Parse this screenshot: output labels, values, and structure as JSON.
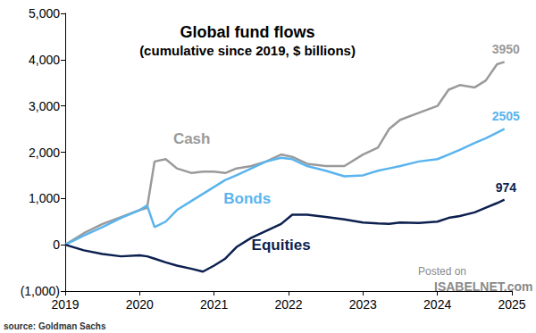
{
  "chart_data": {
    "type": "line",
    "title": "Global fund flows",
    "subtitle": "(cumulative since 2019, $ billions)",
    "x": [
      2019,
      2019.25,
      2019.5,
      2019.75,
      2020,
      2020.1,
      2020.2,
      2020.35,
      2020.5,
      2020.7,
      2020.85,
      2021,
      2021.15,
      2021.3,
      2021.5,
      2021.7,
      2021.9,
      2022.05,
      2022.25,
      2022.5,
      2022.75,
      2023,
      2023.2,
      2023.35,
      2023.5,
      2023.75,
      2024,
      2024.15,
      2024.3,
      2024.5,
      2024.65,
      2024.8,
      2024.9
    ],
    "series": [
      {
        "name": "Cash",
        "color": "#9a9a9a",
        "values": [
          0,
          250,
          450,
          600,
          750,
          800,
          1800,
          1850,
          1650,
          1550,
          1580,
          1580,
          1550,
          1650,
          1700,
          1800,
          1950,
          1900,
          1750,
          1700,
          1700,
          1950,
          2100,
          2500,
          2700,
          2850,
          3000,
          3350,
          3450,
          3400,
          3550,
          3900,
          3950
        ]
      },
      {
        "name": "Bonds",
        "color": "#5ab4ee",
        "values": [
          0,
          200,
          380,
          580,
          750,
          850,
          380,
          500,
          750,
          950,
          1100,
          1250,
          1400,
          1500,
          1650,
          1800,
          1880,
          1850,
          1700,
          1600,
          1480,
          1500,
          1600,
          1650,
          1700,
          1800,
          1850,
          1950,
          2050,
          2200,
          2300,
          2420,
          2505
        ]
      },
      {
        "name": "Equities",
        "color": "#0c1f4f",
        "values": [
          0,
          -120,
          -200,
          -250,
          -230,
          -250,
          -300,
          -380,
          -450,
          -520,
          -580,
          -450,
          -300,
          -50,
          150,
          300,
          450,
          650,
          650,
          600,
          550,
          480,
          460,
          450,
          480,
          470,
          500,
          580,
          620,
          700,
          800,
          900,
          974
        ]
      }
    ],
    "xlim": [
      2019,
      2025
    ],
    "xticks": [
      2019,
      2020,
      2021,
      2022,
      2023,
      2024,
      2025
    ],
    "ylim": [
      -1000,
      5000
    ],
    "yticks": [
      {
        "value": -1000,
        "label": "(1,000)"
      },
      0,
      {
        "value": 1000,
        "label": "1,000"
      },
      {
        "value": 2000,
        "label": "2,000"
      },
      {
        "value": 3000,
        "label": "3,000"
      },
      {
        "value": 4000,
        "label": "4,000"
      },
      {
        "value": 5000,
        "label": "5,000"
      }
    ],
    "grid": false,
    "annotations": [
      "source: Goldman Sachs",
      "Posted on",
      "ISABELNET.com"
    ]
  }
}
